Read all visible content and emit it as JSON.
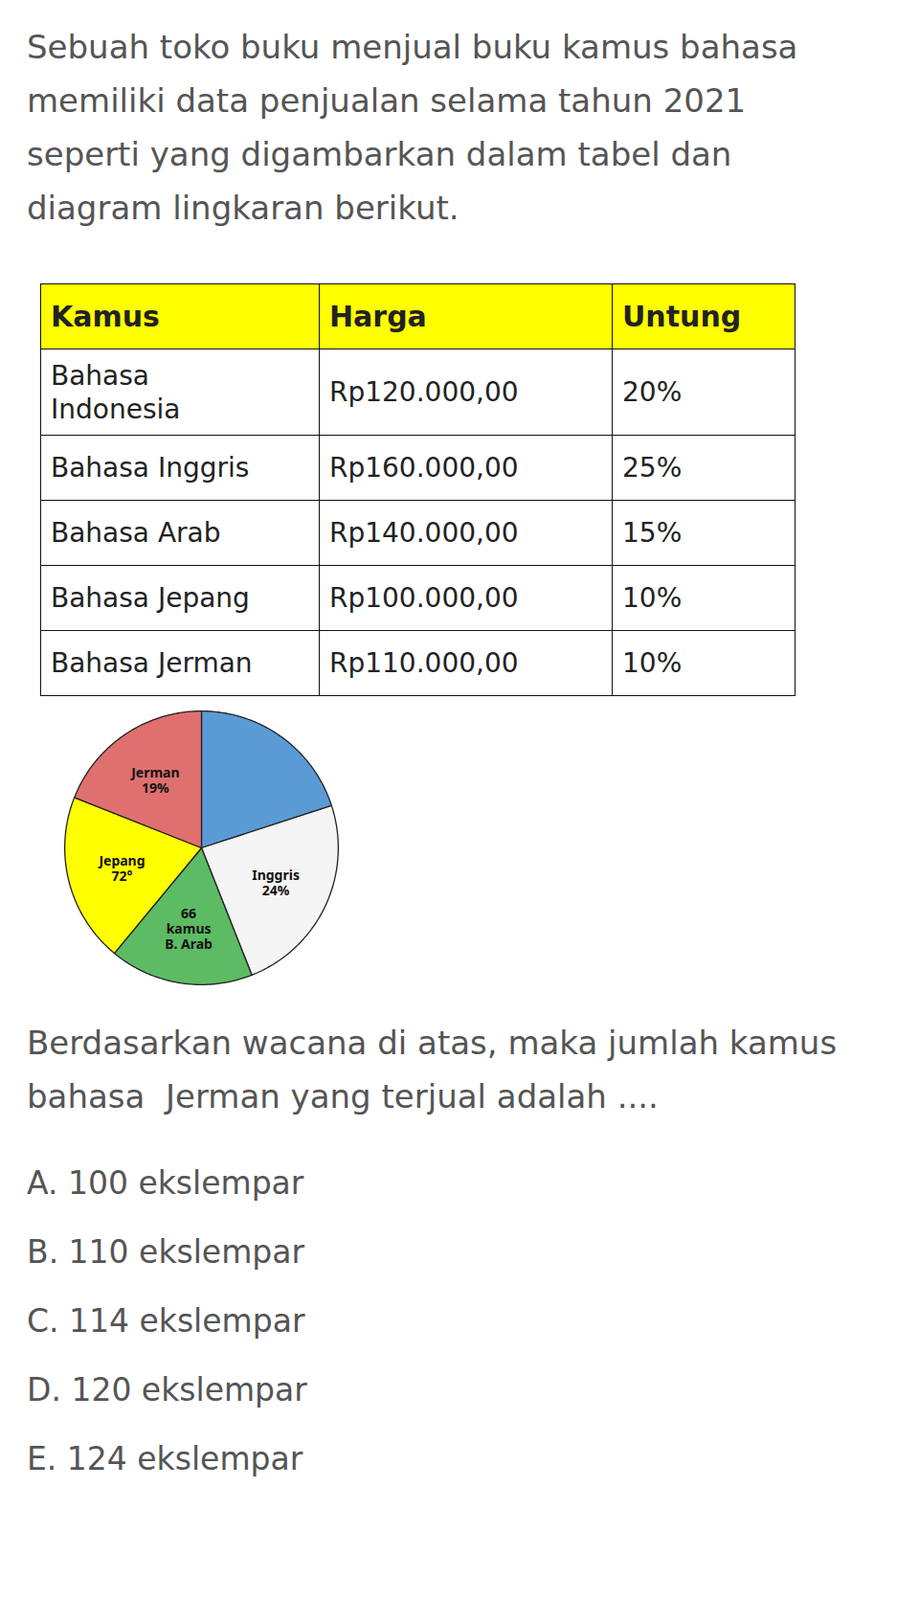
{
  "intro": "Sebuah toko buku menjual buku kamus bahasa\nmemiliki data penjualan selama tahun 2021\nseperti yang digambarkan dalam tabel dan\ndiagram lingkaran berikut.",
  "table": {
    "headers": [
      "Kamus",
      "Harga",
      "Untung"
    ],
    "rows": [
      [
        "Bahasa\nIndonesia",
        "Rp120.000,00",
        "20%"
      ],
      [
        "Bahasa Inggris",
        "Rp160.000,00",
        "25%"
      ],
      [
        "Bahasa Arab",
        "Rp140.000,00",
        "15%"
      ],
      [
        "Bahasa Jepang",
        "Rp100.000,00",
        "10%"
      ],
      [
        "Bahasa Jerman",
        "Rp110.000,00",
        "10%"
      ]
    ],
    "header_color": "#FFFF00"
  },
  "chart_data": {
    "type": "pie",
    "values": [
      20,
      24,
      17,
      20,
      19
    ],
    "value_labels": [
      null,
      "Inggris\n24%",
      "66\nkamus\nB. Arab",
      "Jepang\n72°",
      "Jerman\n19%"
    ],
    "colors": [
      "#5B9BD5",
      "#F5F5F5",
      "#5DBB63",
      "#FFFF00",
      "#E07070"
    ],
    "data_labels": true
  },
  "question": "Berdasarkan wacana di atas, maka jumlah kamus\nbahasa  Jerman yang terjual adalah ....",
  "options": [
    "A. 100 ekslempar",
    "B. 110 ekslempar",
    "C. 114 ekslempar",
    "D. 120 ekslempar",
    "E. 124 ekslempar"
  ],
  "text_color": "#555555",
  "background": "#FFFFFF"
}
